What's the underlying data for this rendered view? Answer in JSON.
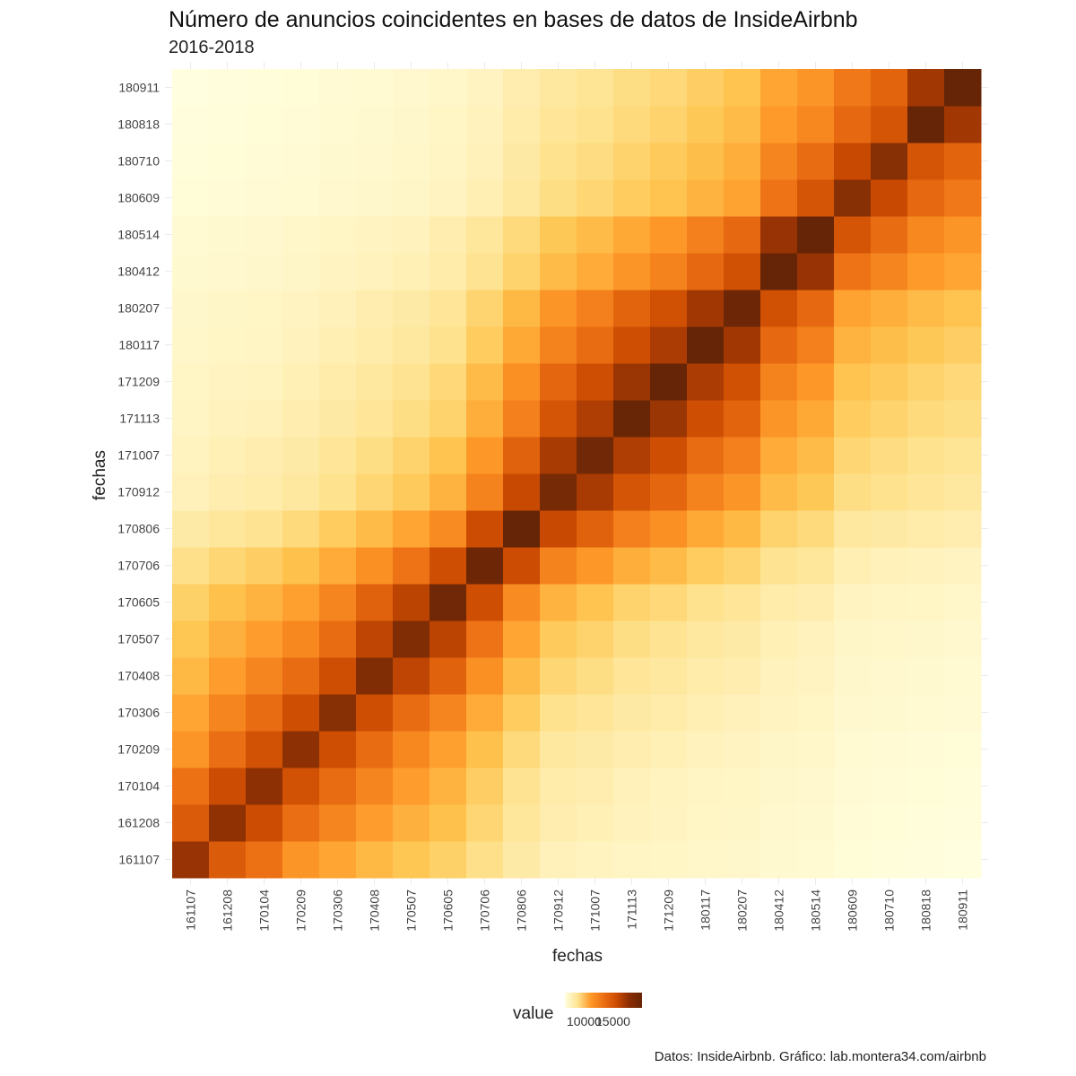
{
  "title": "Número de anuncios coincidentes en bases de datos de InsideAirbnb",
  "subtitle": "2016-2018",
  "caption": "Datos: InsideAirbnb. Gráfico: lab.montera34.com/airbnb",
  "legend": {
    "title": "value",
    "ticks": [
      "10000",
      "15000"
    ]
  },
  "chart_data": {
    "type": "heatmap",
    "title": "Número de anuncios coincidentes en bases de datos de InsideAirbnb",
    "subtitle": "2016-2018",
    "xlabel": "fechas",
    "ylabel": "fechas",
    "categories": [
      "161107",
      "161208",
      "170104",
      "170209",
      "170306",
      "170408",
      "170507",
      "170605",
      "170706",
      "170806",
      "170912",
      "171007",
      "171113",
      "171209",
      "180117",
      "180207",
      "180412",
      "180514",
      "180609",
      "180710",
      "180818",
      "180911"
    ],
    "value_range": [
      6500,
      19000
    ],
    "colorscale": [
      "#ffffe0",
      "#fff3c0",
      "#fee391",
      "#fec44f",
      "#fe9929",
      "#ec7014",
      "#cc4c02",
      "#993404",
      "#662506"
    ],
    "grid": true,
    "legend_position": "bottom",
    "note": "diagonal values are highest (all listings match themselves); values decay with distance in time",
    "values": [
      [
        17500,
        15200,
        14300,
        12900,
        12300,
        11600,
        11100,
        10600,
        9800,
        8900,
        8300,
        8100,
        7900,
        7800,
        7600,
        7500,
        7300,
        7200,
        6900,
        6800,
        6700,
        6600
      ],
      [
        15200,
        17700,
        15900,
        14400,
        13500,
        12600,
        11900,
        11300,
        10300,
        9300,
        8600,
        8400,
        8200,
        8000,
        7800,
        7700,
        7400,
        7300,
        7000,
        6900,
        6800,
        6700
      ],
      [
        14300,
        15900,
        17800,
        15600,
        14500,
        13500,
        12600,
        11800,
        10700,
        9600,
        8800,
        8600,
        8300,
        8100,
        7900,
        7800,
        7500,
        7400,
        7100,
        7000,
        6900,
        6800
      ],
      [
        12900,
        14400,
        15600,
        17800,
        15800,
        14500,
        13400,
        12500,
        11300,
        10100,
        9200,
        8900,
        8600,
        8400,
        8200,
        8000,
        7700,
        7600,
        7200,
        7100,
        7000,
        6900
      ],
      [
        12300,
        13500,
        14500,
        15800,
        18000,
        15800,
        14500,
        13500,
        12100,
        10800,
        9700,
        9400,
        9000,
        8800,
        8500,
        8300,
        8000,
        7800,
        7400,
        7300,
        7200,
        7100
      ],
      [
        11600,
        12600,
        13500,
        14500,
        15800,
        18200,
        16300,
        14900,
        13100,
        11500,
        10300,
        9900,
        9400,
        9200,
        8800,
        8600,
        8200,
        8000,
        7500,
        7400,
        7300,
        7200
      ],
      [
        11100,
        11900,
        12600,
        13400,
        14500,
        16300,
        18200,
        16400,
        14200,
        12300,
        10900,
        10500,
        9900,
        9600,
        9200,
        8900,
        8400,
        8200,
        7700,
        7600,
        7500,
        7400
      ],
      [
        10600,
        11300,
        11800,
        12500,
        13500,
        14900,
        16400,
        18700,
        15800,
        13300,
        11800,
        11200,
        10500,
        10200,
        9700,
        9400,
        8800,
        8600,
        8000,
        7900,
        7800,
        7600
      ],
      [
        9800,
        10300,
        10700,
        11300,
        12100,
        13100,
        14200,
        15800,
        18800,
        15900,
        13600,
        12800,
        12000,
        11500,
        10800,
        10400,
        9600,
        9300,
        8500,
        8300,
        8200,
        8000
      ],
      [
        8900,
        9300,
        9600,
        10100,
        10800,
        11500,
        12300,
        13300,
        15900,
        19000,
        16000,
        14900,
        13700,
        13100,
        12200,
        11600,
        10500,
        10100,
        9200,
        9000,
        8800,
        8600
      ],
      [
        8300,
        8600,
        8800,
        9200,
        9700,
        10300,
        10900,
        11800,
        13600,
        16000,
        18500,
        17000,
        15500,
        14700,
        13600,
        12900,
        11500,
        11000,
        9900,
        9700,
        9400,
        9200
      ],
      [
        8100,
        8400,
        8600,
        8900,
        9400,
        9900,
        10500,
        11200,
        12800,
        14900,
        17000,
        18700,
        16800,
        15800,
        14500,
        13700,
        12100,
        11500,
        10300,
        10000,
        9700,
        9500
      ],
      [
        7900,
        8200,
        8300,
        8600,
        9000,
        9400,
        9900,
        10500,
        12000,
        13700,
        15500,
        16800,
        18900,
        17400,
        15800,
        14800,
        12900,
        12200,
        10800,
        10500,
        10100,
        9900
      ],
      [
        7800,
        8000,
        8100,
        8400,
        8800,
        9200,
        9600,
        10200,
        11500,
        13100,
        14700,
        15800,
        17400,
        19000,
        16900,
        15700,
        13600,
        12800,
        11200,
        10900,
        10500,
        10200
      ],
      [
        7600,
        7800,
        7900,
        8200,
        8500,
        8800,
        9200,
        9700,
        10800,
        12200,
        13600,
        14500,
        15800,
        16900,
        19000,
        17200,
        14600,
        13700,
        11800,
        11400,
        11000,
        10700
      ],
      [
        7500,
        7700,
        7800,
        8000,
        8300,
        8600,
        8900,
        9400,
        10400,
        11600,
        12900,
        13700,
        14800,
        15700,
        17200,
        18800,
        15700,
        14600,
        12400,
        12000,
        11500,
        11200
      ],
      [
        7300,
        7400,
        7500,
        7700,
        8000,
        8200,
        8400,
        8800,
        9600,
        10500,
        11500,
        12100,
        12900,
        13600,
        14600,
        15700,
        19000,
        17500,
        14200,
        13500,
        12700,
        12300
      ],
      [
        7200,
        7300,
        7400,
        7600,
        7800,
        8000,
        8200,
        8600,
        9300,
        10100,
        11000,
        11500,
        12200,
        12800,
        13700,
        14600,
        17500,
        19000,
        15500,
        14500,
        13400,
        12900
      ],
      [
        6900,
        7000,
        7100,
        7200,
        7400,
        7500,
        7700,
        8000,
        8500,
        9200,
        9900,
        10300,
        10800,
        11200,
        11800,
        12400,
        14200,
        15500,
        18000,
        16000,
        14600,
        14000
      ],
      [
        6800,
        6900,
        7000,
        7100,
        7300,
        7400,
        7600,
        7900,
        8300,
        9000,
        9700,
        10000,
        10500,
        10900,
        11400,
        12000,
        13500,
        14500,
        16000,
        18000,
        15500,
        14800
      ],
      [
        6700,
        6800,
        6900,
        7000,
        7200,
        7300,
        7500,
        7800,
        8200,
        8800,
        9400,
        9700,
        10100,
        10500,
        11000,
        11500,
        12700,
        13400,
        14600,
        15500,
        19000,
        17200
      ],
      [
        6600,
        6700,
        6800,
        6900,
        7100,
        7200,
        7400,
        7600,
        8000,
        8600,
        9200,
        9500,
        9900,
        10200,
        10700,
        11200,
        12300,
        12900,
        14000,
        14800,
        17200,
        19000
      ]
    ]
  }
}
